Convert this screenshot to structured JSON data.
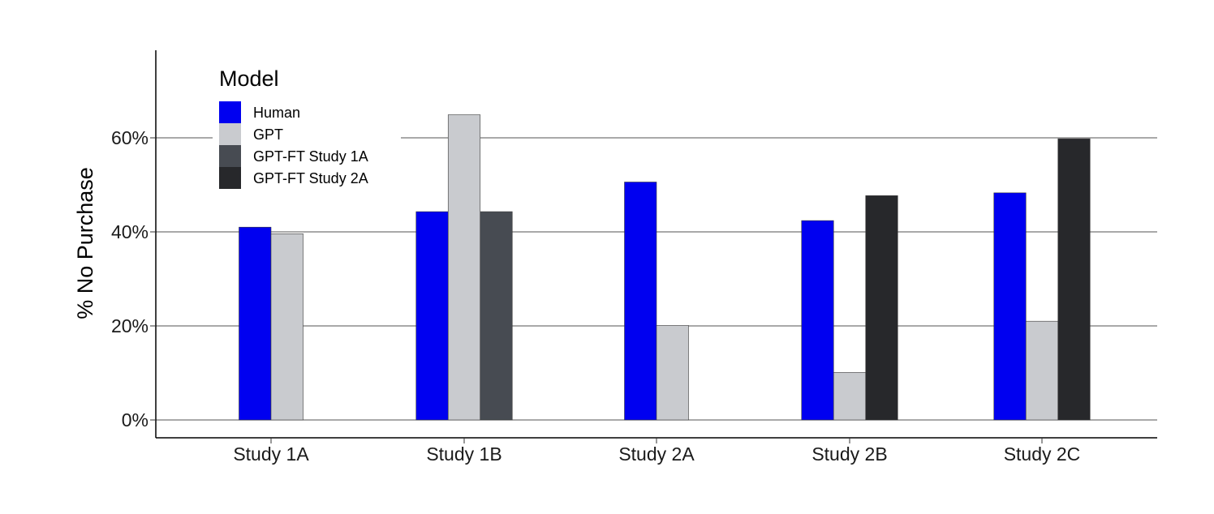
{
  "chart_data": {
    "type": "bar",
    "ylabel": "% No Purchase",
    "yticks": [
      "0%",
      "20%",
      "40%",
      "60%"
    ],
    "ylim": [
      0,
      78
    ],
    "grid": "horizontal",
    "legend": {
      "title": "Model",
      "placement": "top-left"
    },
    "categories": [
      "Study 1A",
      "Study 1B",
      "Study 2A",
      "Study 2B",
      "Study 2C"
    ],
    "series": [
      {
        "name": "Human",
        "color": "#0000f0",
        "values": [
          41.0,
          44.3,
          50.6,
          42.4,
          48.3
        ]
      },
      {
        "name": "GPT",
        "color": "#c9cbcf",
        "values": [
          39.6,
          64.9,
          20.1,
          10.1,
          21.0
        ]
      },
      {
        "name": "GPT-FT Study 1A",
        "color": "#474b52",
        "values": [
          null,
          44.3,
          null,
          null,
          null
        ]
      },
      {
        "name": "GPT-FT Study 2A",
        "color": "#27282b",
        "values": [
          null,
          null,
          null,
          47.7,
          59.8
        ]
      }
    ]
  }
}
